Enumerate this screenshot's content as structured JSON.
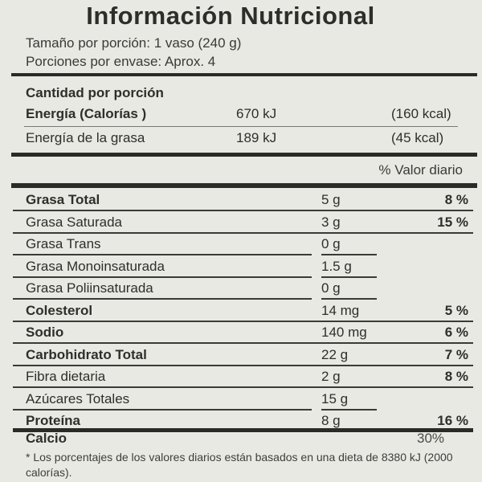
{
  "title": "Información Nutricional",
  "serving_size": "Tamaño por porción: 1 vaso (240 g)",
  "servings_per_container": "Porciones por envase: Aprox. 4",
  "amount_per_serving": "Cantidad por porción",
  "energy": {
    "label": "Energía  (Calorías )",
    "kj": "670 kJ",
    "kcal": "(160 kcal)"
  },
  "energy_fat": {
    "label": "Energía de la grasa",
    "kj": "189 kJ",
    "kcal": "(45 kcal)"
  },
  "daily_value_header": "% Valor diario",
  "nutrients": [
    {
      "name": "Grasa Total",
      "amount": "5 g",
      "dv": "8 %"
    },
    {
      "name": "Grasa Saturada",
      "amount": "3 g",
      "dv": "15 %"
    },
    {
      "name": "Grasa Trans",
      "amount": "0 g",
      "dv": ""
    },
    {
      "name": "Grasa Monoinsaturada",
      "amount": "1.5 g",
      "dv": ""
    },
    {
      "name": "Grasa Poliinsaturada",
      "amount": "0 g",
      "dv": ""
    },
    {
      "name": "Colesterol",
      "amount": "14 mg",
      "dv": "5 %"
    },
    {
      "name": "Sodio",
      "amount": "140 mg",
      "dv": "6 %"
    },
    {
      "name": "Carbohidrato Total",
      "amount": "22 g",
      "dv": "7 %"
    },
    {
      "name": "Fibra dietaria",
      "amount": "2 g",
      "dv": "8 %"
    },
    {
      "name": "Azúcares Totales",
      "amount": "15 g",
      "dv": ""
    },
    {
      "name": "Proteína",
      "amount": "8 g",
      "dv": "16 %"
    }
  ],
  "calcium": {
    "name": "Calcio",
    "dv": "30%"
  },
  "footnote": "* Los porcentajes de los valores diarios están basados en una dieta de 8380 kJ (2000 calorías)."
}
